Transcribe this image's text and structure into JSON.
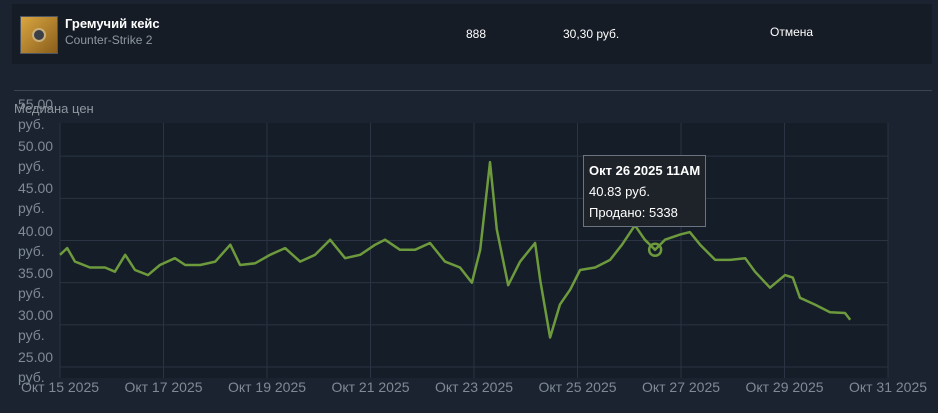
{
  "listing": {
    "name": "Гремучий кейс",
    "game": "Counter-Strike 2",
    "quantity": "888",
    "price": "30,30 руб.",
    "action": "Отмена"
  },
  "chart_data": {
    "type": "line",
    "title": "Медиана цен",
    "color": "#6d9a3c",
    "grid": true,
    "x": [
      15.0,
      15.14,
      15.29,
      15.58,
      15.87,
      16.06,
      16.26,
      16.45,
      16.7,
      16.93,
      17.22,
      17.42,
      17.71,
      18.0,
      18.29,
      18.48,
      18.77,
      19.06,
      19.35,
      19.64,
      19.93,
      20.22,
      20.51,
      20.8,
      21.09,
      21.28,
      21.57,
      21.86,
      22.15,
      22.44,
      22.73,
      22.96,
      23.12,
      23.31,
      23.44,
      23.66,
      23.89,
      24.18,
      24.28,
      24.47,
      24.66,
      24.86,
      25.05,
      25.34,
      25.63,
      25.86,
      26.11,
      26.3,
      26.5,
      26.69,
      26.98,
      27.17,
      27.37,
      27.66,
      27.95,
      28.24,
      28.43,
      28.72,
      29.01,
      29.16,
      29.3,
      29.59,
      29.88,
      30.17,
      30.27
    ],
    "values": [
      38.3,
      39.1,
      37.5,
      36.8,
      36.8,
      36.3,
      38.3,
      36.5,
      35.9,
      37.1,
      37.9,
      37.1,
      37.1,
      37.5,
      39.5,
      37.1,
      37.3,
      38.3,
      39.1,
      37.5,
      38.3,
      40.1,
      37.9,
      38.3,
      39.5,
      40.1,
      38.9,
      38.9,
      39.7,
      37.5,
      36.8,
      35.0,
      38.9,
      49.3,
      41.3,
      34.7,
      37.5,
      39.7,
      35.3,
      28.5,
      32.4,
      34.2,
      36.5,
      36.8,
      37.7,
      39.5,
      41.8,
      40.1,
      38.9,
      40.1,
      40.7,
      41.0,
      39.5,
      37.7,
      37.7,
      37.9,
      36.3,
      34.4,
      35.9,
      35.6,
      33.2,
      32.4,
      31.5,
      31.4,
      30.6
    ],
    "xlim": [
      15,
      31
    ],
    "xticks": [
      {
        "value": 15,
        "label": "Окт 15 2025"
      },
      {
        "value": 17,
        "label": "Окт 17 2025"
      },
      {
        "value": 19,
        "label": "Окт 19 2025"
      },
      {
        "value": 21,
        "label": "Окт 21 2025"
      },
      {
        "value": 23,
        "label": "Окт 23 2025"
      },
      {
        "value": 25,
        "label": "Окт 25 2025"
      },
      {
        "value": 27,
        "label": "Окт 27 2025"
      },
      {
        "value": 29,
        "label": "Окт 29 2025"
      },
      {
        "value": 31,
        "label": "Окт 31 2025"
      }
    ],
    "ylim": [
      25,
      55
    ],
    "yticks": [
      {
        "value": 55,
        "label": "55.00 руб."
      },
      {
        "value": 50,
        "label": "50.00 руб."
      },
      {
        "value": 45,
        "label": "45.00 руб."
      },
      {
        "value": 40,
        "label": "40.00 руб."
      },
      {
        "value": 35,
        "label": "35.00 руб."
      },
      {
        "value": 30,
        "label": "30.00 руб."
      },
      {
        "value": 25,
        "label": "25.00 руб."
      }
    ],
    "tooltip": {
      "date": "Окт 26 2025 11AM",
      "price": "40.83 руб.",
      "sold": "Продано: 5338"
    }
  }
}
